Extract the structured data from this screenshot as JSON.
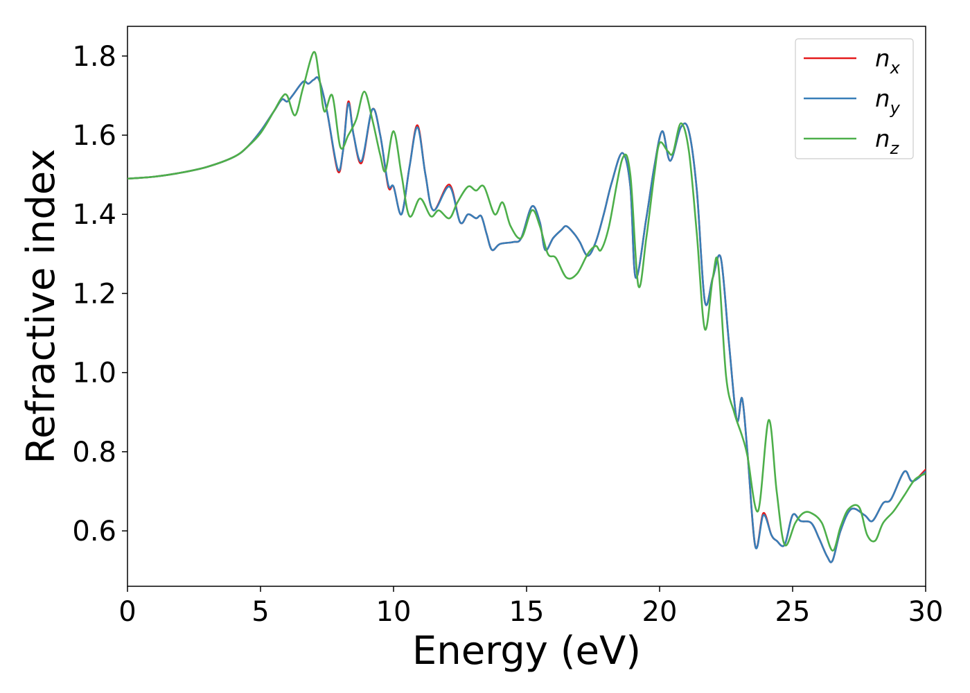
{
  "chart_data": {
    "type": "line",
    "xlabel": "Energy (eV)",
    "ylabel": "Refractive index",
    "xlim": [
      0,
      30
    ],
    "ylim": [
      0.46,
      1.875
    ],
    "xticks": [
      0,
      5,
      10,
      15,
      20,
      25,
      30
    ],
    "xtick_labels": [
      "0",
      "5",
      "10",
      "15",
      "20",
      "25",
      "30"
    ],
    "yticks": [
      0.6,
      0.8,
      1.0,
      1.2,
      1.4,
      1.6,
      1.8
    ],
    "ytick_labels": [
      "0.6",
      "0.8",
      "1.0",
      "1.2",
      "1.4",
      "1.6",
      "1.8"
    ],
    "grid": false,
    "legend_position": "top-right",
    "series": [
      {
        "name": "n_x",
        "label_main": "n",
        "label_sub": "x",
        "color": "#e41a1c",
        "x": [
          0,
          1,
          2,
          3,
          4,
          4.5,
          5,
          5.5,
          5.8,
          6.0,
          6.2,
          6.6,
          6.8,
          7.0,
          7.2,
          7.5,
          7.9,
          8.1,
          8.3,
          8.5,
          8.8,
          9.2,
          9.5,
          9.8,
          10.0,
          10.3,
          10.6,
          10.9,
          11.2,
          11.5,
          12.1,
          12.5,
          12.8,
          13.1,
          13.3,
          13.5,
          13.7,
          14.0,
          14.5,
          14.8,
          15.2,
          15.5,
          15.7,
          16.0,
          16.3,
          16.5,
          16.8,
          17.0,
          17.3,
          17.6,
          17.9,
          18.2,
          18.6,
          18.9,
          19.1,
          19.5,
          19.8,
          20.1,
          20.4,
          20.8,
          21.1,
          21.4,
          21.7,
          22.0,
          22.3,
          22.6,
          22.9,
          23.1,
          23.3,
          23.6,
          23.9,
          24.2,
          24.4,
          24.7,
          25.0,
          25.3,
          25.7,
          26.0,
          26.3,
          26.5,
          26.8,
          27.2,
          27.7,
          28.0,
          28.4,
          28.7,
          29.2,
          29.5,
          30
        ],
        "y": [
          1.49,
          1.495,
          1.505,
          1.52,
          1.545,
          1.57,
          1.61,
          1.66,
          1.69,
          1.685,
          1.7,
          1.735,
          1.73,
          1.74,
          1.74,
          1.66,
          1.51,
          1.56,
          1.685,
          1.6,
          1.53,
          1.665,
          1.6,
          1.47,
          1.47,
          1.4,
          1.52,
          1.625,
          1.5,
          1.41,
          1.475,
          1.38,
          1.4,
          1.39,
          1.395,
          1.35,
          1.31,
          1.325,
          1.33,
          1.34,
          1.42,
          1.38,
          1.31,
          1.34,
          1.36,
          1.37,
          1.35,
          1.33,
          1.295,
          1.33,
          1.4,
          1.48,
          1.555,
          1.47,
          1.24,
          1.39,
          1.52,
          1.61,
          1.535,
          1.62,
          1.61,
          1.46,
          1.18,
          1.24,
          1.29,
          1.08,
          0.88,
          0.935,
          0.8,
          0.56,
          0.645,
          0.59,
          0.575,
          0.565,
          0.64,
          0.625,
          0.62,
          0.58,
          0.535,
          0.525,
          0.6,
          0.655,
          0.64,
          0.625,
          0.67,
          0.68,
          0.75,
          0.725,
          0.755
        ]
      },
      {
        "name": "n_y",
        "label_main": "n",
        "label_sub": "y",
        "color": "#377eb8",
        "x": [
          0,
          1,
          2,
          3,
          4,
          4.5,
          5,
          5.5,
          5.8,
          6.0,
          6.2,
          6.6,
          6.8,
          7.0,
          7.2,
          7.5,
          7.9,
          8.1,
          8.3,
          8.5,
          8.8,
          9.2,
          9.5,
          9.8,
          10.0,
          10.3,
          10.6,
          10.9,
          11.2,
          11.5,
          12.1,
          12.5,
          12.8,
          13.1,
          13.3,
          13.5,
          13.7,
          14.0,
          14.5,
          14.8,
          15.2,
          15.5,
          15.7,
          16.0,
          16.3,
          16.5,
          16.8,
          17.0,
          17.3,
          17.6,
          17.9,
          18.2,
          18.6,
          18.9,
          19.1,
          19.5,
          19.8,
          20.1,
          20.4,
          20.8,
          21.1,
          21.4,
          21.7,
          22.0,
          22.3,
          22.6,
          22.9,
          23.1,
          23.3,
          23.6,
          23.9,
          24.2,
          24.4,
          24.7,
          25.0,
          25.3,
          25.7,
          26.0,
          26.3,
          26.5,
          26.8,
          27.2,
          27.7,
          28.0,
          28.4,
          28.7,
          29.2,
          29.5,
          30
        ],
        "y": [
          1.49,
          1.495,
          1.505,
          1.52,
          1.545,
          1.57,
          1.61,
          1.66,
          1.69,
          1.685,
          1.7,
          1.735,
          1.73,
          1.74,
          1.74,
          1.66,
          1.515,
          1.56,
          1.68,
          1.6,
          1.535,
          1.665,
          1.6,
          1.475,
          1.47,
          1.4,
          1.52,
          1.62,
          1.5,
          1.41,
          1.47,
          1.38,
          1.4,
          1.39,
          1.395,
          1.35,
          1.31,
          1.325,
          1.33,
          1.34,
          1.42,
          1.38,
          1.31,
          1.34,
          1.36,
          1.37,
          1.35,
          1.33,
          1.295,
          1.33,
          1.4,
          1.48,
          1.555,
          1.47,
          1.24,
          1.39,
          1.52,
          1.61,
          1.535,
          1.62,
          1.61,
          1.46,
          1.18,
          1.24,
          1.29,
          1.08,
          0.88,
          0.935,
          0.8,
          0.56,
          0.64,
          0.59,
          0.575,
          0.565,
          0.64,
          0.625,
          0.62,
          0.58,
          0.535,
          0.525,
          0.6,
          0.655,
          0.64,
          0.625,
          0.67,
          0.68,
          0.75,
          0.725,
          0.75
        ]
      },
      {
        "name": "n_z",
        "label_main": "n",
        "label_sub": "z",
        "color": "#4daf4a",
        "x": [
          0,
          1,
          2,
          3,
          4,
          4.5,
          5,
          5.5,
          5.8,
          6.0,
          6.3,
          6.6,
          7.0,
          7.2,
          7.4,
          7.7,
          8.0,
          8.3,
          8.6,
          8.9,
          9.2,
          9.5,
          9.7,
          10.0,
          10.3,
          10.6,
          11.0,
          11.4,
          11.7,
          12.1,
          12.4,
          12.8,
          13.1,
          13.4,
          13.8,
          14.1,
          14.4,
          14.8,
          15.2,
          15.5,
          15.8,
          16.1,
          16.5,
          16.9,
          17.3,
          17.6,
          17.8,
          18.1,
          18.6,
          18.9,
          19.2,
          19.5,
          19.8,
          20.0,
          20.3,
          20.5,
          20.8,
          21.1,
          21.4,
          21.7,
          22.0,
          22.2,
          22.5,
          22.8,
          23.1,
          23.3,
          23.7,
          24.1,
          24.4,
          24.7,
          25.1,
          25.4,
          25.7,
          26.1,
          26.5,
          26.8,
          27.1,
          27.5,
          27.8,
          28.1,
          28.4,
          28.8,
          29.2,
          29.6,
          30
        ],
        "y": [
          1.49,
          1.495,
          1.505,
          1.52,
          1.545,
          1.57,
          1.605,
          1.66,
          1.695,
          1.7,
          1.65,
          1.72,
          1.81,
          1.75,
          1.66,
          1.7,
          1.57,
          1.6,
          1.64,
          1.71,
          1.64,
          1.55,
          1.51,
          1.61,
          1.5,
          1.395,
          1.44,
          1.395,
          1.41,
          1.39,
          1.43,
          1.47,
          1.46,
          1.47,
          1.4,
          1.43,
          1.37,
          1.34,
          1.41,
          1.37,
          1.3,
          1.29,
          1.24,
          1.25,
          1.3,
          1.32,
          1.31,
          1.37,
          1.54,
          1.5,
          1.22,
          1.34,
          1.5,
          1.58,
          1.56,
          1.555,
          1.63,
          1.56,
          1.35,
          1.11,
          1.24,
          1.275,
          0.99,
          0.9,
          0.84,
          0.79,
          0.65,
          0.88,
          0.7,
          0.565,
          0.62,
          0.645,
          0.645,
          0.62,
          0.55,
          0.61,
          0.655,
          0.66,
          0.59,
          0.575,
          0.62,
          0.65,
          0.69,
          0.73,
          0.745
        ]
      }
    ]
  }
}
